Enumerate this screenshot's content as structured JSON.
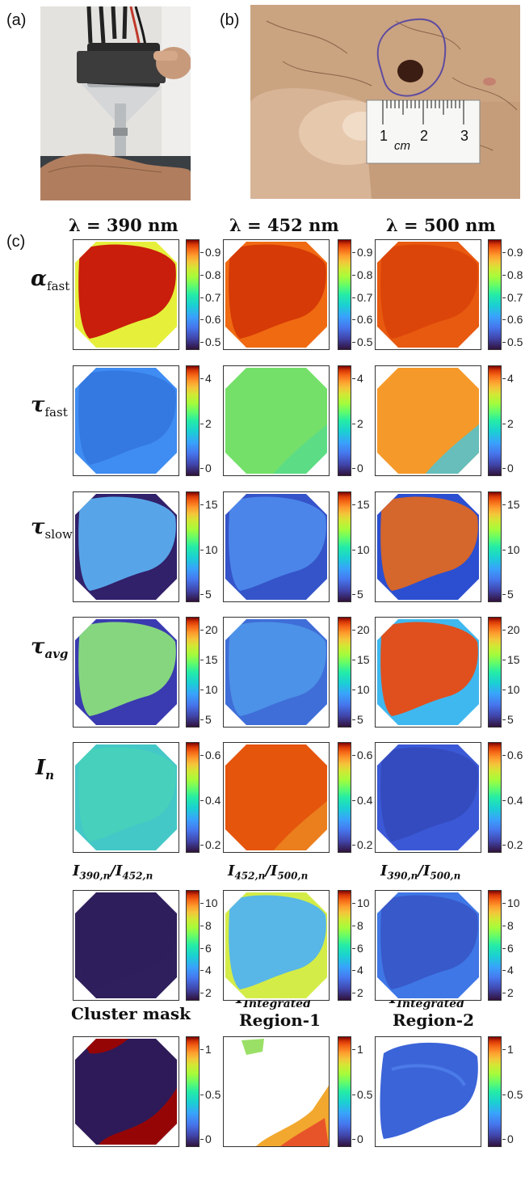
{
  "panels": {
    "a": "(a)",
    "b": "(b)",
    "c": "(c)"
  },
  "ruler": {
    "unit": "cm",
    "labels": [
      "1",
      "2",
      "3"
    ]
  },
  "columns": [
    "λ = 390 nm",
    "λ = 452 nm",
    "λ = 500 nm"
  ],
  "rows": [
    {
      "symbol": "α",
      "sub": "fast",
      "ticks": [
        "0.9",
        "0.8",
        "0.7",
        "0.6",
        "0.5"
      ]
    },
    {
      "symbol": "τ",
      "sub": "fast",
      "ticks": [
        "4",
        "2",
        "0"
      ]
    },
    {
      "symbol": "τ",
      "sub": "slow",
      "ticks": [
        "15",
        "10",
        "5"
      ]
    },
    {
      "symbol": "τ",
      "sub": "avg",
      "ticks": [
        "20",
        "15",
        "10",
        "5"
      ]
    },
    {
      "symbol": "I",
      "sub": "n",
      "ticks": [
        "0.6",
        "0.4",
        "0.2"
      ]
    },
    {
      "ticks": [
        "10",
        "8",
        "6",
        "4",
        "2"
      ]
    },
    {
      "ticks": [
        "1",
        "0.5",
        "0"
      ]
    }
  ],
  "ratio_titles": [
    {
      "num": "390,n",
      "den": "452,n"
    },
    {
      "num": "452,n",
      "den": "500,n"
    },
    {
      "num": "390,n",
      "den": "500,n"
    }
  ],
  "bottom_titles": {
    "cluster": "Cluster mask",
    "integrated_symbol": "I",
    "integrated_sub": "Integrated",
    "region1": "Region-1",
    "region2": "Region-2"
  },
  "colors": {
    "lesion_dark": "#3b1d14",
    "skin": "#c8a07e",
    "colormap_low": "#30123b",
    "colormap_high": "#7a0403"
  }
}
